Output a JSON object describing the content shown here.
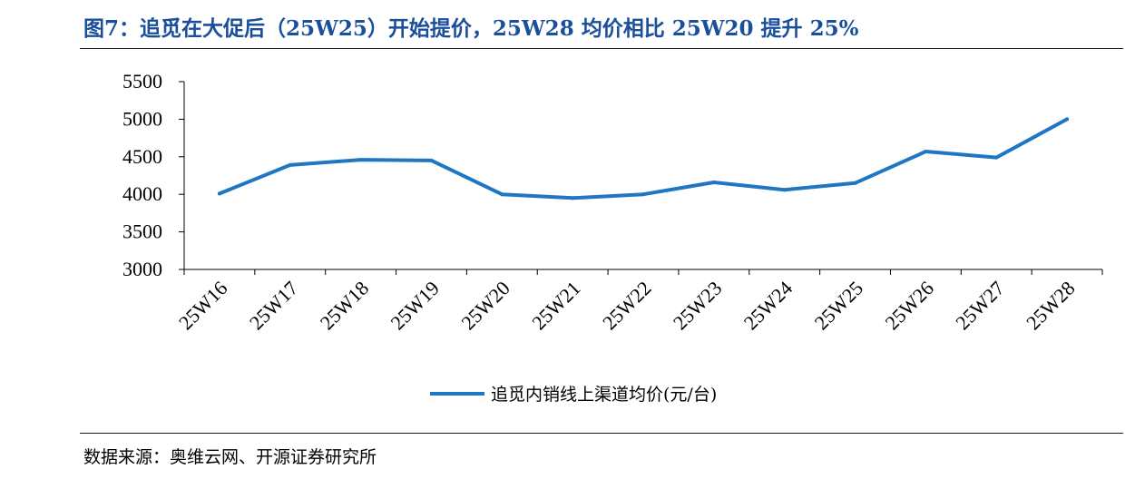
{
  "title": "图7：追觅在大促后（25W25）开始提价，25W28 均价相比 25W20 提升 25%",
  "source": "数据来源：奥维云网、开源证券研究所",
  "colors": {
    "title": "#1a4f9c",
    "series": "#1f77c4",
    "axis": "#000000"
  },
  "chart_data": {
    "type": "line",
    "categories": [
      "25W16",
      "25W17",
      "25W18",
      "25W19",
      "25W20",
      "25W21",
      "25W22",
      "25W23",
      "25W24",
      "25W25",
      "25W26",
      "25W27",
      "25W28"
    ],
    "series": [
      {
        "name": "追觅内销线上渠道均价(元/台)",
        "values": [
          4010,
          4390,
          4460,
          4450,
          4000,
          3950,
          4000,
          4160,
          4060,
          4150,
          4570,
          4490,
          5000
        ]
      }
    ],
    "yticks": [
      3000,
      3500,
      4000,
      4500,
      5000,
      5500
    ],
    "ylim": [
      3000,
      5500
    ],
    "grid": false,
    "legend": "bottom-center",
    "xlabel": "",
    "ylabel": ""
  }
}
